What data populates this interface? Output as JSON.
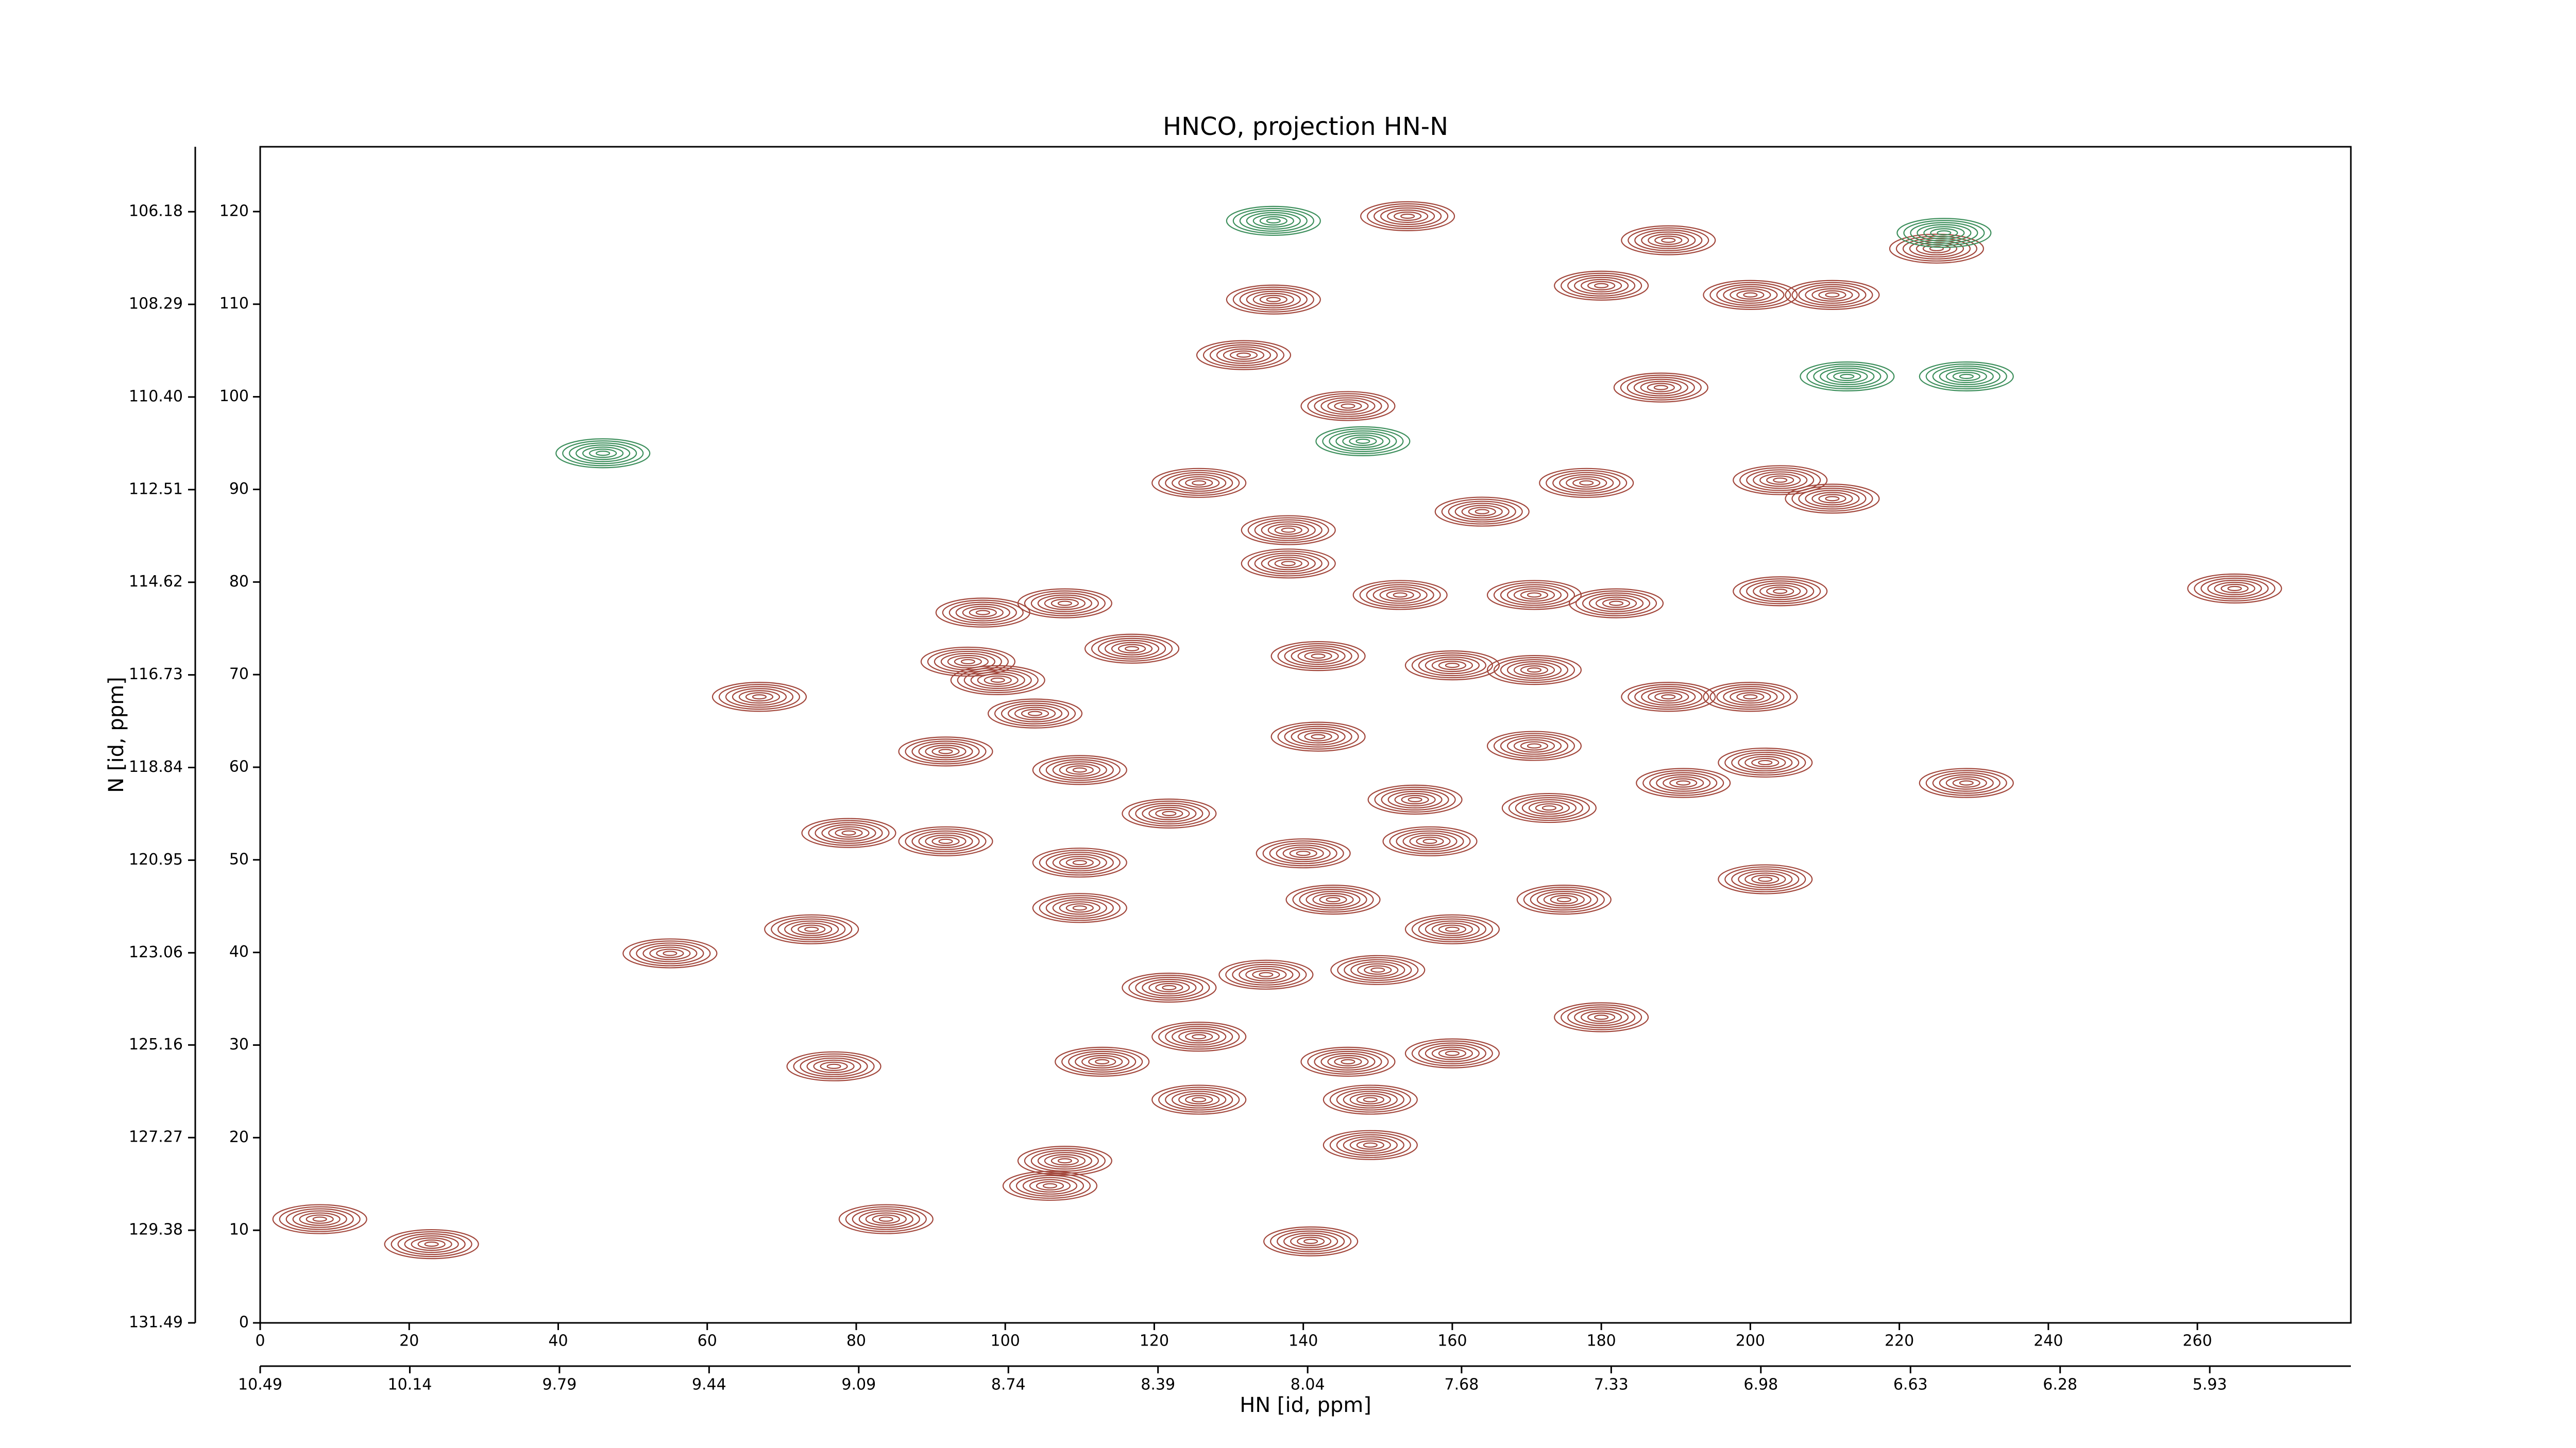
{
  "chart_data": {
    "type": "contour",
    "title": "HNCO, projection HN-N",
    "x_label": "HN [id, ppm]",
    "y_label": "N [id, ppm]",
    "xlim": [
      0,
      280.6
    ],
    "ylim": [
      0,
      127
    ],
    "xticks": [
      0,
      20,
      40,
      60,
      80,
      100,
      120,
      140,
      160,
      180,
      200,
      220,
      240,
      260
    ],
    "yticks": [
      0,
      10,
      20,
      30,
      40,
      50,
      60,
      70,
      80,
      90,
      100,
      110,
      120
    ],
    "x2lim": [
      10.49,
      5.6
    ],
    "x2ticks": [
      10.49,
      10.14,
      9.79,
      9.44,
      9.09,
      8.74,
      8.39,
      8.04,
      7.68,
      7.33,
      6.98,
      6.63,
      6.28,
      5.93
    ],
    "y2lim": [
      131.49,
      104.7
    ],
    "y2ticks": [
      106.18,
      108.29,
      {
        "value": 110.4,
        "label": "110.40"
      },
      112.51,
      114.62,
      116.73,
      118.84,
      120.95,
      123.06,
      125.16,
      127.27,
      129.38,
      131.49
    ],
    "series": [
      {
        "color": "#a2473c",
        "x": [
          154,
          189,
          225,
          136,
          180,
          200,
          211,
          132,
          146,
          188,
          126,
          164,
          178,
          204,
          211,
          138,
          138,
          153,
          171,
          182,
          265,
          204,
          97,
          108,
          95,
          117,
          142,
          160,
          171,
          189,
          200,
          67,
          104,
          99,
          142,
          171,
          92,
          110,
          202,
          191,
          229,
          155,
          173,
          122,
          79,
          92,
          140,
          157,
          110,
          202,
          144,
          175,
          110,
          160,
          74,
          55,
          122,
          135,
          150,
          180,
          126,
          160,
          146,
          113,
          77,
          126,
          149,
          149,
          108,
          106,
          84,
          8,
          23,
          141
        ],
        "y": [
          119.5,
          116.9,
          116,
          110.5,
          112,
          111,
          111,
          104.5,
          99,
          101,
          90.7,
          87.6,
          90.7,
          91,
          89,
          85.6,
          82,
          78.6,
          78.6,
          77.7,
          79.3,
          79,
          76.7,
          77.7,
          71.4,
          72.8,
          72,
          71,
          70.5,
          67.6,
          67.6,
          67.6,
          65.8,
          69.4,
          63.3,
          62.3,
          61.7,
          59.7,
          60.5,
          58.3,
          58.3,
          56.5,
          55.6,
          55,
          52.9,
          52,
          50.7,
          52,
          49.7,
          47.9,
          45.7,
          45.7,
          44.8,
          42.5,
          42.5,
          39.9,
          36.2,
          37.6,
          38.1,
          33,
          30.9,
          29.1,
          28.2,
          28.2,
          27.7,
          24.1,
          24.1,
          19.2,
          17.5,
          14.8,
          11.2,
          11.2,
          8.5,
          8.8
        ]
      },
      {
        "color": "#3d8f5c",
        "x": [
          136,
          226,
          148,
          213,
          229,
          46
        ],
        "y": [
          119,
          117.7,
          95.2,
          102.2,
          102.2,
          93.9
        ]
      }
    ]
  }
}
